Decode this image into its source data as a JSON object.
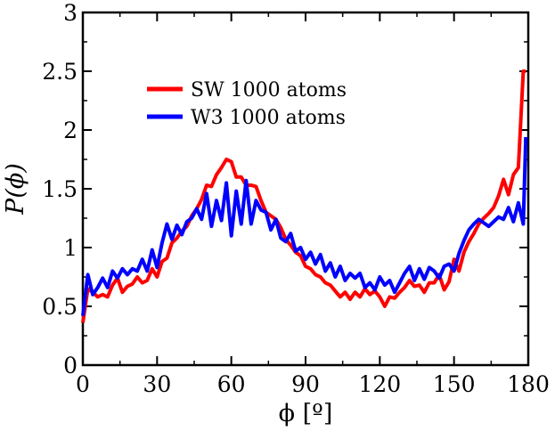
{
  "chart_data": {
    "type": "line",
    "title": "",
    "xlabel": "ϕ  [º]",
    "ylabel": "P(ϕ)",
    "xlim": [
      0,
      180
    ],
    "ylim": [
      0,
      3
    ],
    "xticks": [
      "0",
      "30",
      "60",
      "90",
      "120",
      "150",
      "180"
    ],
    "yticks": [
      "0",
      "0.5",
      "1",
      "1.5",
      "2",
      "2.5",
      "3"
    ],
    "grid": false,
    "legend_position": "upper-left",
    "series": [
      {
        "name": "SW 1000 atoms",
        "color": "#ff0000",
        "x": [
          0,
          2,
          4,
          6,
          8,
          10,
          12,
          14,
          16,
          18,
          20,
          22,
          24,
          26,
          28,
          30,
          32,
          34,
          36,
          38,
          40,
          42,
          44,
          46,
          48,
          50,
          52,
          54,
          56,
          58,
          60,
          62,
          64,
          66,
          68,
          70,
          72,
          74,
          76,
          78,
          80,
          82,
          84,
          86,
          88,
          90,
          92,
          94,
          96,
          98,
          100,
          102,
          104,
          106,
          108,
          110,
          112,
          114,
          116,
          118,
          120,
          122,
          124,
          126,
          128,
          130,
          132,
          134,
          136,
          138,
          140,
          142,
          144,
          146,
          148,
          150,
          152,
          154,
          156,
          158,
          160,
          162,
          164,
          166,
          168,
          170,
          172,
          174,
          176,
          178,
          179
        ],
        "values": [
          0.36,
          0.65,
          0.62,
          0.58,
          0.6,
          0.58,
          0.68,
          0.74,
          0.62,
          0.67,
          0.69,
          0.75,
          0.7,
          0.72,
          0.82,
          0.75,
          0.88,
          0.91,
          1.04,
          1.08,
          1.14,
          1.18,
          1.27,
          1.33,
          1.41,
          1.53,
          1.52,
          1.62,
          1.68,
          1.75,
          1.73,
          1.6,
          1.6,
          1.53,
          1.53,
          1.52,
          1.4,
          1.3,
          1.27,
          1.24,
          1.17,
          1.07,
          1.02,
          0.96,
          0.93,
          0.84,
          0.82,
          0.77,
          0.75,
          0.7,
          0.68,
          0.63,
          0.58,
          0.62,
          0.56,
          0.62,
          0.58,
          0.65,
          0.6,
          0.63,
          0.58,
          0.5,
          0.58,
          0.57,
          0.62,
          0.66,
          0.72,
          0.67,
          0.68,
          0.62,
          0.7,
          0.7,
          0.77,
          0.64,
          0.71,
          0.9,
          0.8,
          0.96,
          1.05,
          1.12,
          1.2,
          1.25,
          1.29,
          1.34,
          1.44,
          1.58,
          1.45,
          1.62,
          1.68,
          2.5,
          2.5
        ]
      },
      {
        "name": "W3 1000 atoms",
        "color": "#0000ff",
        "x": [
          0,
          2,
          4,
          6,
          8,
          10,
          12,
          14,
          16,
          18,
          20,
          22,
          24,
          26,
          28,
          30,
          32,
          34,
          36,
          38,
          40,
          42,
          44,
          46,
          48,
          50,
          52,
          54,
          56,
          58,
          60,
          62,
          64,
          66,
          68,
          70,
          72,
          74,
          76,
          78,
          80,
          82,
          84,
          86,
          88,
          90,
          92,
          94,
          96,
          98,
          100,
          102,
          104,
          106,
          108,
          110,
          112,
          114,
          116,
          118,
          120,
          122,
          124,
          126,
          128,
          130,
          132,
          134,
          136,
          138,
          140,
          142,
          144,
          146,
          148,
          150,
          152,
          154,
          156,
          158,
          160,
          162,
          164,
          166,
          168,
          170,
          172,
          174,
          176,
          178,
          179
        ],
        "values": [
          0.42,
          0.77,
          0.6,
          0.66,
          0.74,
          0.66,
          0.8,
          0.74,
          0.82,
          0.77,
          0.82,
          0.8,
          0.9,
          0.8,
          0.98,
          0.83,
          1.04,
          1.2,
          1.07,
          1.19,
          1.11,
          1.22,
          1.25,
          1.33,
          1.24,
          1.46,
          1.18,
          1.4,
          1.23,
          1.55,
          1.1,
          1.48,
          1.2,
          1.57,
          1.2,
          1.4,
          1.32,
          1.3,
          1.15,
          1.24,
          1.08,
          1.05,
          1.12,
          0.97,
          1.0,
          0.9,
          0.96,
          0.86,
          0.94,
          0.8,
          0.87,
          0.75,
          0.84,
          0.72,
          0.78,
          0.74,
          0.78,
          0.66,
          0.7,
          0.64,
          0.75,
          0.68,
          0.72,
          0.62,
          0.7,
          0.78,
          0.84,
          0.72,
          0.82,
          0.73,
          0.83,
          0.8,
          0.74,
          0.84,
          0.86,
          0.8,
          0.95,
          1.06,
          1.15,
          1.2,
          1.24,
          1.21,
          1.18,
          1.22,
          1.26,
          1.24,
          1.34,
          1.22,
          1.38,
          1.2,
          1.94
        ]
      }
    ]
  }
}
